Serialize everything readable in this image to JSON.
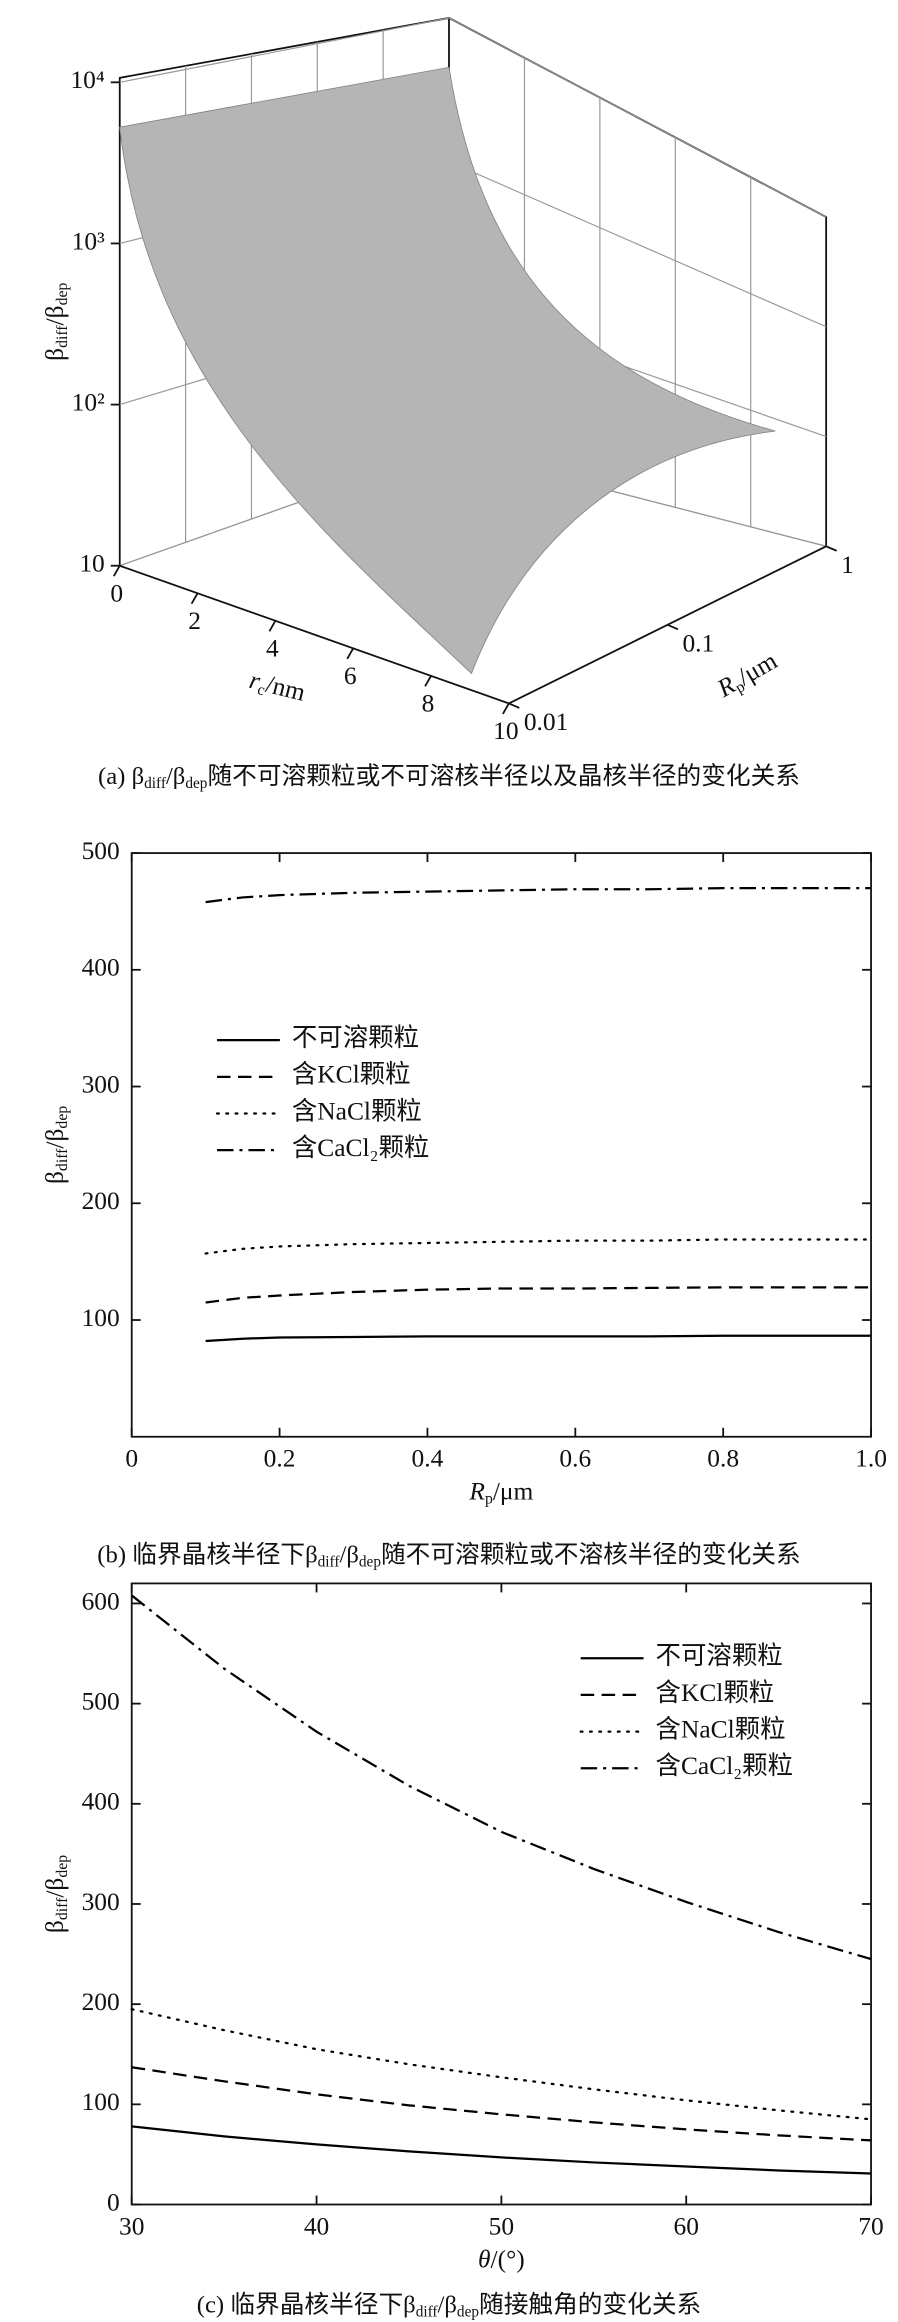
{
  "chart_data": [
    {
      "type": "surface3d",
      "zlabel": [
        "β",
        "diff",
        "/β",
        "dep"
      ],
      "xlabel": [
        "r",
        "c",
        "/nm"
      ],
      "ylabel": [
        "R",
        "p",
        "/μm"
      ],
      "xlim": [
        0,
        10
      ],
      "xticks": [
        0,
        2,
        4,
        6,
        8,
        10
      ],
      "ylim": [
        0.01,
        1
      ],
      "yticks": [
        {
          "value": 0.01,
          "label": "0.01"
        },
        {
          "value": 0.1,
          "label": "0.1"
        },
        1
      ],
      "ylog": true,
      "zlim": [
        10,
        10000
      ],
      "zticks": [
        10,
        {
          "value": 100,
          "label": "10²"
        },
        {
          "value": 1000,
          "label": "10³"
        },
        {
          "value": 10000,
          "label": "10⁴"
        }
      ],
      "zlog": true,
      "color": "#b5b5b5",
      "caption": [
        "(a) β",
        "diff",
        "/β",
        "dep",
        "随不可溶颗粒或不可溶核半径以及晶核半径的变化关系"
      ]
    },
    {
      "type": "line",
      "ylabel": [
        "β",
        "diff",
        "/β",
        "dep"
      ],
      "xlabel": [
        "R",
        "p",
        "/μm"
      ],
      "xlim": [
        0,
        1
      ],
      "xticks": [
        0,
        0.2,
        0.4,
        0.6,
        0.8,
        {
          "value": 1,
          "label": "1.0"
        }
      ],
      "ylim": [
        0,
        500
      ],
      "yticks": [
        100,
        200,
        300,
        400,
        500
      ],
      "x": [
        0.1,
        0.15,
        0.2,
        0.3,
        0.4,
        0.5,
        0.6,
        0.7,
        0.8,
        0.9,
        1.0
      ],
      "series": [
        {
          "name": "不可溶颗粒",
          "color": "#000",
          "style": "solid",
          "values": [
            82,
            84,
            85,
            85.5,
            86,
            86,
            86,
            86,
            86.5,
            86.5,
            86.5
          ]
        },
        {
          "name": "含KCl颗粒",
          "color": "#000",
          "style": "dashed",
          "values": [
            115,
            119,
            121,
            124,
            126,
            127,
            127,
            127.5,
            128,
            128,
            128
          ]
        },
        {
          "name": "含NaCl颗粒",
          "color": "#000",
          "style": "dotted",
          "values": [
            157,
            161,
            163,
            165,
            166,
            167,
            168,
            168,
            169,
            169,
            169
          ]
        },
        {
          "name": "含CaCl₂颗粒",
          "color": "#000",
          "style": "dashdot",
          "values": [
            458,
            462,
            464,
            466,
            467,
            468,
            469,
            469,
            470,
            470,
            470
          ]
        }
      ],
      "legend": "upper left",
      "caption": [
        "(b) 临界晶核半径下β",
        "diff",
        "/β",
        "dep",
        "随不可溶颗粒或不溶核半径的变化关系"
      ]
    },
    {
      "type": "line",
      "ylabel": [
        "β",
        "diff",
        "/β",
        "dep"
      ],
      "xlabel": [
        "θ",
        "",
        "/(°)"
      ],
      "xlim": [
        30,
        70
      ],
      "xticks": [
        30,
        40,
        50,
        60,
        70
      ],
      "ylim": [
        0,
        620
      ],
      "yticks": [
        0,
        100,
        200,
        300,
        400,
        500,
        600
      ],
      "x": [
        30,
        35,
        40,
        45,
        50,
        55,
        60,
        65,
        70
      ],
      "series": [
        {
          "name": "不可溶颗粒",
          "color": "#000",
          "style": "solid",
          "values": [
            78,
            68,
            60,
            53,
            47,
            42,
            38,
            34,
            31
          ]
        },
        {
          "name": "含KCl颗粒",
          "color": "#000",
          "style": "dashed",
          "values": [
            137,
            123,
            110,
            99,
            90,
            82,
            75,
            69,
            64
          ]
        },
        {
          "name": "含NaCl颗粒",
          "color": "#000",
          "style": "dotted",
          "values": [
            195,
            174,
            155,
            140,
            127,
            115,
            104,
            94,
            85
          ]
        },
        {
          "name": "含CaCl₂颗粒",
          "color": "#000",
          "style": "dashdot",
          "values": [
            608,
            535,
            472,
            418,
            372,
            335,
            302,
            272,
            245
          ]
        }
      ],
      "legend": "upper right",
      "caption": [
        "(c) 临界晶核半径下β",
        "diff",
        "/β",
        "dep",
        "随接触角的变化关系"
      ]
    }
  ]
}
